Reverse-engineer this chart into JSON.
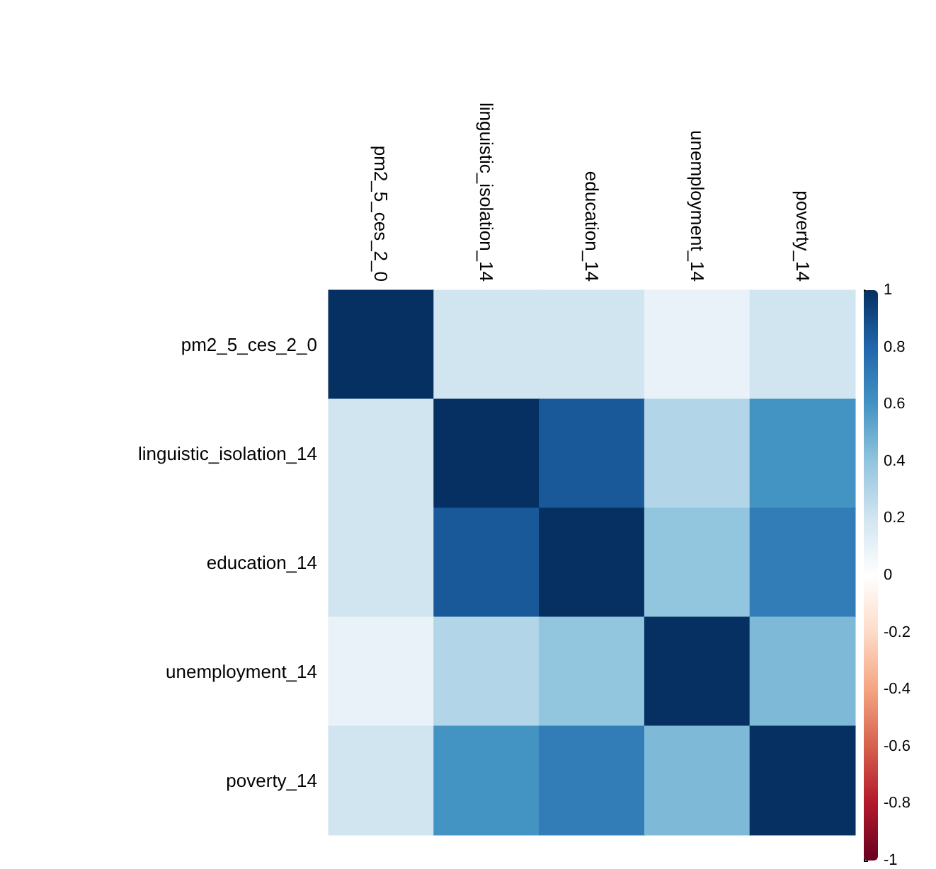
{
  "chart_data": {
    "type": "heatmap",
    "categories": [
      "pm2_5_ces_2_0",
      "linguistic_isolation_14",
      "education_14",
      "unemployment_14",
      "poverty_14"
    ],
    "y_categories": [
      "pm2_5_ces_2_0",
      "linguistic_isolation_14",
      "education_14",
      "unemployment_14",
      "poverty_14"
    ],
    "cells": [
      [
        1,
        0.2,
        0.2,
        0.1,
        0.2
      ],
      [
        0.2,
        1,
        0.85,
        0.3,
        0.6
      ],
      [
        0.2,
        0.85,
        1,
        0.4,
        0.7
      ],
      [
        0.1,
        0.3,
        0.4,
        1,
        0.45
      ],
      [
        0.2,
        0.6,
        0.7,
        0.45,
        1
      ]
    ],
    "clim": [
      -1,
      1
    ],
    "cticks": [
      -1,
      -0.8,
      -0.6,
      -0.4,
      -0.2,
      0,
      0.2,
      0.4,
      0.6,
      0.8,
      1
    ]
  }
}
